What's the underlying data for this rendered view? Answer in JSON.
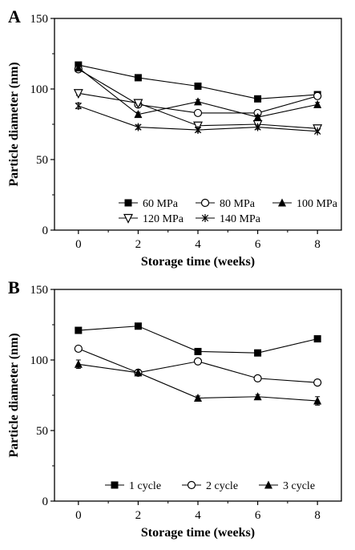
{
  "chart_data": [
    {
      "panel_label": "A",
      "type": "line",
      "xlabel": "Storage time (weeks)",
      "ylabel": "Particle diameter (nm)",
      "xlim": [
        -0.8,
        8.8
      ],
      "ylim": [
        0,
        150
      ],
      "xticks": [
        0,
        2,
        4,
        6,
        8
      ],
      "yticks": [
        0,
        50,
        100,
        150
      ],
      "x": [
        0,
        2,
        4,
        6,
        8
      ],
      "legend_placement": "bottom-right",
      "legend_rows": [
        [
          0,
          1,
          2
        ],
        [
          3,
          4
        ]
      ],
      "grid": false,
      "series": [
        {
          "name": "60 MPa",
          "marker": "filled-square",
          "values": [
            117,
            108,
            102,
            93,
            96
          ],
          "errors": [
            1.5,
            1.0,
            1.0,
            1.0,
            1.5
          ]
        },
        {
          "name": "80 MPa",
          "marker": "open-circle",
          "values": [
            114,
            89,
            83,
            83,
            95
          ],
          "errors": [
            2.0,
            2.0,
            1.5,
            1.5,
            2.0
          ]
        },
        {
          "name": "100 MPa",
          "marker": "filled-triangle",
          "values": [
            115,
            82,
            91,
            80,
            89
          ],
          "errors": [
            1.5,
            1.5,
            1.5,
            1.5,
            1.5
          ]
        },
        {
          "name": "120 MPa",
          "marker": "open-triangle-down",
          "values": [
            97,
            90,
            74,
            75,
            72
          ],
          "errors": [
            1.5,
            1.5,
            1.0,
            1.0,
            1.0
          ]
        },
        {
          "name": "140 MPa",
          "marker": "asterisk",
          "values": [
            88,
            73,
            71,
            73,
            70
          ],
          "errors": [
            2.0,
            1.5,
            1.5,
            1.5,
            1.0
          ]
        }
      ]
    },
    {
      "panel_label": "B",
      "type": "line",
      "xlabel": "Storage time (weeks)",
      "ylabel": "Particle diameter (nm)",
      "xlim": [
        -0.8,
        8.8
      ],
      "ylim": [
        0,
        150
      ],
      "xticks": [
        0,
        2,
        4,
        6,
        8
      ],
      "yticks": [
        0,
        50,
        100,
        150
      ],
      "x": [
        0,
        2,
        4,
        6,
        8
      ],
      "legend_placement": "bottom-center",
      "legend_rows": [
        [
          0,
          1,
          2
        ]
      ],
      "grid": false,
      "series": [
        {
          "name": "1 cycle",
          "marker": "filled-square",
          "values": [
            121,
            124,
            106,
            105,
            115
          ],
          "errors": [
            1.5,
            1.5,
            1.5,
            1.5,
            1.5
          ]
        },
        {
          "name": "2 cycle",
          "marker": "open-circle",
          "values": [
            108,
            91,
            99,
            87,
            84
          ],
          "errors": [
            2.0,
            1.5,
            1.5,
            1.5,
            1.5
          ]
        },
        {
          "name": "3 cycle",
          "marker": "filled-triangle",
          "values": [
            97,
            91,
            73,
            74,
            71
          ],
          "errors": [
            3.0,
            2.0,
            1.5,
            1.5,
            3.0
          ]
        }
      ]
    }
  ]
}
